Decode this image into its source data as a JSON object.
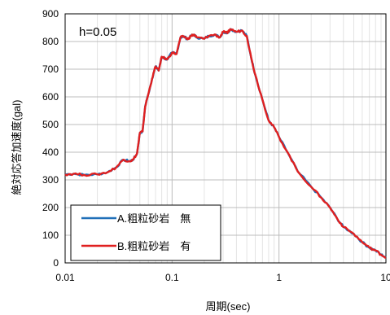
{
  "chart_data": {
    "type": "line",
    "annotation": "h=0.05",
    "xlabel": "周期(sec)",
    "ylabel": "絶対応答加速度(gal)",
    "xscale": "log",
    "xlim": [
      0.01,
      10
    ],
    "ylim": [
      0,
      900
    ],
    "x_tick_labels": [
      "0.01",
      "0.1",
      "1",
      "10"
    ],
    "y_tick_labels": [
      "0",
      "100",
      "200",
      "300",
      "400",
      "500",
      "600",
      "700",
      "800",
      "900"
    ],
    "grid": true,
    "legend_position": "bottom-left",
    "series": [
      {
        "name": "A.粗粒砂岩　無",
        "color": "#1f6fb8",
        "x": [
          0.01,
          0.012,
          0.015,
          0.02,
          0.025,
          0.03,
          0.035,
          0.04,
          0.043,
          0.047,
          0.05,
          0.053,
          0.056,
          0.06,
          0.065,
          0.07,
          0.075,
          0.08,
          0.09,
          0.1,
          0.11,
          0.12,
          0.13,
          0.14,
          0.15,
          0.16,
          0.17,
          0.2,
          0.22,
          0.25,
          0.28,
          0.3,
          0.33,
          0.35,
          0.4,
          0.45,
          0.5,
          0.55,
          0.6,
          0.7,
          0.8,
          0.9,
          1.0,
          1.2,
          1.5,
          2.0,
          2.5,
          3.0,
          3.5,
          4.0,
          5.0,
          6.0,
          7.0,
          8.0,
          9.0,
          10.0
        ],
        "y": [
          320,
          322,
          318,
          320,
          328,
          345,
          373,
          368,
          372,
          395,
          470,
          475,
          565,
          610,
          665,
          710,
          695,
          745,
          735,
          760,
          755,
          815,
          818,
          808,
          820,
          825,
          815,
          810,
          820,
          825,
          815,
          835,
          830,
          845,
          835,
          840,
          820,
          740,
          680,
          590,
          515,
          490,
          455,
          400,
          330,
          275,
          235,
          200,
          160,
          130,
          105,
          75,
          55,
          45,
          30,
          20
        ]
      },
      {
        "name": "B.粗粒砂岩　有",
        "color": "#e02020",
        "x": [
          0.01,
          0.012,
          0.015,
          0.02,
          0.025,
          0.03,
          0.035,
          0.04,
          0.043,
          0.047,
          0.05,
          0.053,
          0.056,
          0.06,
          0.065,
          0.07,
          0.075,
          0.08,
          0.09,
          0.1,
          0.11,
          0.12,
          0.13,
          0.14,
          0.15,
          0.16,
          0.17,
          0.2,
          0.22,
          0.25,
          0.28,
          0.3,
          0.33,
          0.35,
          0.4,
          0.45,
          0.5,
          0.55,
          0.6,
          0.7,
          0.8,
          0.9,
          1.0,
          1.2,
          1.5,
          2.0,
          2.5,
          3.0,
          3.5,
          4.0,
          5.0,
          6.0,
          7.0,
          8.0,
          9.0,
          10.0
        ],
        "y": [
          320,
          322,
          318,
          320,
          328,
          345,
          373,
          368,
          372,
          395,
          470,
          475,
          565,
          610,
          665,
          710,
          695,
          745,
          735,
          760,
          755,
          815,
          818,
          808,
          820,
          825,
          815,
          810,
          820,
          825,
          815,
          835,
          830,
          845,
          835,
          840,
          820,
          740,
          680,
          590,
          515,
          490,
          455,
          400,
          330,
          275,
          235,
          200,
          160,
          130,
          105,
          75,
          55,
          45,
          30,
          20
        ]
      }
    ]
  }
}
